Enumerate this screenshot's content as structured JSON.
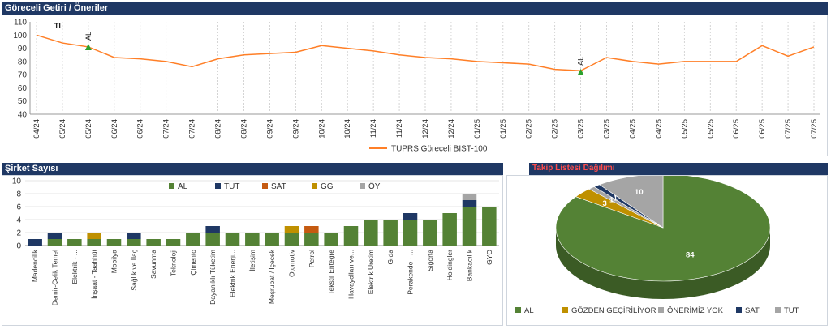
{
  "sections": {
    "top_title": "Göreceli Getiri / Öneriler",
    "bar_title": "Şirket Sayısı",
    "pie_title": "Takip Listesi Dağılımı"
  },
  "chart_data": [
    {
      "type": "line",
      "series": [
        {
          "name": "TUPRS Göreceli BIST-100",
          "x": [
            "04/24",
            "05/24",
            "05/24",
            "06/24",
            "06/24",
            "07/24",
            "07/24",
            "08/24",
            "08/24",
            "09/24",
            "09/24",
            "10/24",
            "10/24",
            "11/24",
            "11/24",
            "12/24",
            "12/24",
            "01/25",
            "01/25",
            "02/25",
            "02/25",
            "03/25",
            "03/25",
            "04/25",
            "04/25",
            "05/25",
            "05/25",
            "06/25",
            "06/25",
            "07/25",
            "07/25"
          ],
          "values": [
            100,
            94,
            91,
            83,
            82,
            80,
            76,
            82,
            85,
            86,
            87,
            92,
            90,
            88,
            85,
            83,
            82,
            80,
            79,
            78,
            74,
            73,
            83,
            80,
            78,
            80,
            80,
            80,
            92,
            84,
            91
          ],
          "color": "#ff7f27"
        }
      ],
      "ylim": [
        40,
        110
      ],
      "yticks": [
        40,
        50,
        60,
        70,
        80,
        90,
        100,
        110
      ],
      "xticks": [
        "04/24",
        "05/24",
        "05/24",
        "06/24",
        "06/24",
        "07/24",
        "07/24",
        "08/24",
        "08/24",
        "09/24",
        "09/24",
        "10/24",
        "10/24",
        "11/24",
        "11/24",
        "12/24",
        "12/24",
        "01/25",
        "01/25",
        "02/25",
        "02/25",
        "03/25",
        "03/25",
        "04/25",
        "04/25",
        "05/25",
        "05/25",
        "06/25",
        "06/25",
        "07/25",
        "07/25"
      ],
      "annotations": [
        {
          "label": "TL",
          "tick_index": 1,
          "y": 104
        },
        {
          "label": "AL",
          "tick_index": 2,
          "y": 91,
          "marker": "triangle",
          "color": "#2ca02c"
        },
        {
          "label": "AL",
          "tick_index": 21,
          "y": 72,
          "marker": "triangle",
          "color": "#2ca02c"
        }
      ],
      "grid": "vertical dashed",
      "legend": "bottom"
    },
    {
      "type": "bar",
      "stacked": true,
      "categories": [
        "Madencilik",
        "Demir-Çelik Temel",
        "Elektrik - ...",
        "İnşaat - Taahhüt",
        "Mobilya",
        "Sağlık ve İlaç",
        "Savunma",
        "Teknoloji",
        "Çimento",
        "Dayanıklı Tüketim",
        "Elektrik Enerji...",
        "İletişim",
        "Meşrubat / İçecek",
        "Otomotiv",
        "Petrol",
        "Tekstil Entegre",
        "Havayolları ve...",
        "Elektrik Üretim",
        "Gıda",
        "Perakende - ...",
        "Sigorta",
        "Holdingler",
        "Bankacılık",
        "GYO"
      ],
      "series": [
        {
          "name": "AL",
          "color": "#548235",
          "values": [
            0,
            1,
            1,
            1,
            1,
            1,
            1,
            1,
            2,
            2,
            2,
            2,
            2,
            2,
            2,
            2,
            3,
            4,
            4,
            4,
            4,
            5,
            6,
            6
          ]
        },
        {
          "name": "TUT",
          "color": "#1f3864",
          "values": [
            1,
            1,
            0,
            0,
            0,
            1,
            0,
            0,
            0,
            1,
            0,
            0,
            0,
            0,
            0,
            0,
            0,
            0,
            0,
            1,
            0,
            0,
            1,
            0
          ]
        },
        {
          "name": "SAT",
          "color": "#c55a11",
          "values": [
            0,
            0,
            0,
            0,
            0,
            0,
            0,
            0,
            0,
            0,
            0,
            0,
            0,
            0,
            1,
            0,
            0,
            0,
            0,
            0,
            0,
            0,
            0,
            0
          ]
        },
        {
          "name": "GG",
          "color": "#bf9000",
          "values": [
            0,
            0,
            0,
            1,
            0,
            0,
            0,
            0,
            0,
            0,
            0,
            0,
            0,
            1,
            0,
            0,
            0,
            0,
            0,
            0,
            0,
            0,
            0,
            0
          ]
        },
        {
          "name": "ÖY",
          "color": "#a5a5a5",
          "values": [
            0,
            0,
            0,
            0,
            0,
            0,
            0,
            0,
            0,
            0,
            0,
            0,
            0,
            0,
            0,
            0,
            0,
            0,
            0,
            0,
            0,
            0,
            1,
            0
          ]
        }
      ],
      "ylim": [
        0,
        10
      ],
      "yticks": [
        0,
        2,
        4,
        6,
        8,
        10
      ],
      "legend": "top"
    },
    {
      "type": "pie",
      "slices": [
        {
          "label": "AL",
          "value": 84,
          "color": "#548235"
        },
        {
          "label": "GÖZDEN GEÇİRİLİYOR",
          "value": 3,
          "color": "#bf9000"
        },
        {
          "label": "ÖNERİMİZ YOK",
          "value": 1,
          "color": "#a5a5a5"
        },
        {
          "label": "SAT",
          "value": 1,
          "color": "#1f3864"
        },
        {
          "label": "TUT",
          "value": 10,
          "color": "#a5a5a5"
        }
      ],
      "legend": "bottom"
    }
  ]
}
